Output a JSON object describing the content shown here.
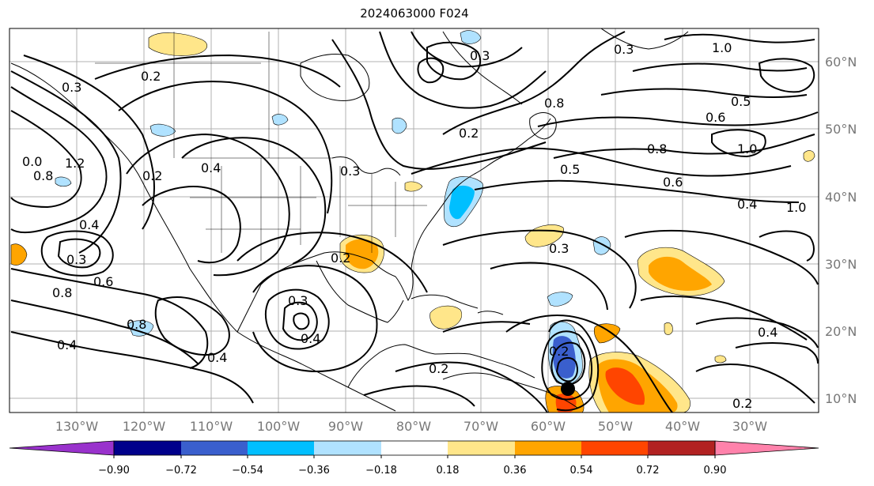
{
  "title": "2024063000 F024",
  "longitude_labels": [
    "130°W",
    "120°W",
    "110°W",
    "100°W",
    "90°W",
    "80°W",
    "70°W",
    "60°W",
    "50°W",
    "40°W",
    "30°W"
  ],
  "latitude_labels": [
    "60°N",
    "50°N",
    "40°N",
    "30°N",
    "20°N",
    "10°N"
  ],
  "colorbar": {
    "tick_labels": [
      "−0.90",
      "−0.72",
      "−0.54",
      "−0.36",
      "−0.18",
      "0.18",
      "0.36",
      "0.54",
      "0.72",
      "0.90"
    ],
    "colors": [
      "#9932cc",
      "#00008b",
      "#3a5fcd",
      "#00bfff",
      "#b0e2ff",
      "#ffffff",
      "#ffe68a",
      "#ffa500",
      "#ff4500",
      "#b22222",
      "#ff82ab"
    ]
  },
  "contour_labels": [
    {
      "id": "c1",
      "text": "0.2"
    },
    {
      "id": "c2",
      "text": "0.3"
    },
    {
      "id": "c3",
      "text": "1.2"
    },
    {
      "id": "c4",
      "text": "0.8"
    },
    {
      "id": "c5",
      "text": "0.0"
    },
    {
      "id": "c6",
      "text": "0.2"
    },
    {
      "id": "c7",
      "text": "0.4"
    },
    {
      "id": "c8",
      "text": "0.4"
    },
    {
      "id": "c9",
      "text": "0.3"
    },
    {
      "id": "c10",
      "text": "0.6"
    },
    {
      "id": "c11",
      "text": "0.8"
    },
    {
      "id": "c12",
      "text": "0.4"
    },
    {
      "id": "c13",
      "text": "0.8"
    },
    {
      "id": "c14",
      "text": "0.4"
    },
    {
      "id": "c15",
      "text": "0.3"
    },
    {
      "id": "c16",
      "text": "0.4"
    },
    {
      "id": "c17",
      "text": "0.3"
    },
    {
      "id": "c18",
      "text": "0.2"
    },
    {
      "id": "c19",
      "text": "0.2"
    },
    {
      "id": "c20",
      "text": "0.2"
    },
    {
      "id": "c21",
      "text": "0.3"
    },
    {
      "id": "c22",
      "text": "1.0"
    },
    {
      "id": "c23",
      "text": "0.5"
    },
    {
      "id": "c24",
      "text": "0.6"
    },
    {
      "id": "c25",
      "text": "0.8"
    },
    {
      "id": "c26",
      "text": "1.0"
    },
    {
      "id": "c27",
      "text": "0.5"
    },
    {
      "id": "c28",
      "text": "0.6"
    },
    {
      "id": "c29",
      "text": "0.4"
    },
    {
      "id": "c30",
      "text": "1.0"
    },
    {
      "id": "c31",
      "text": "0.3"
    },
    {
      "id": "c32",
      "text": "0.2"
    },
    {
      "id": "c33",
      "text": "0.4"
    },
    {
      "id": "c34",
      "text": "0.2"
    },
    {
      "id": "c35",
      "text": "0.3"
    },
    {
      "id": "c36",
      "text": "0.8"
    }
  ]
}
